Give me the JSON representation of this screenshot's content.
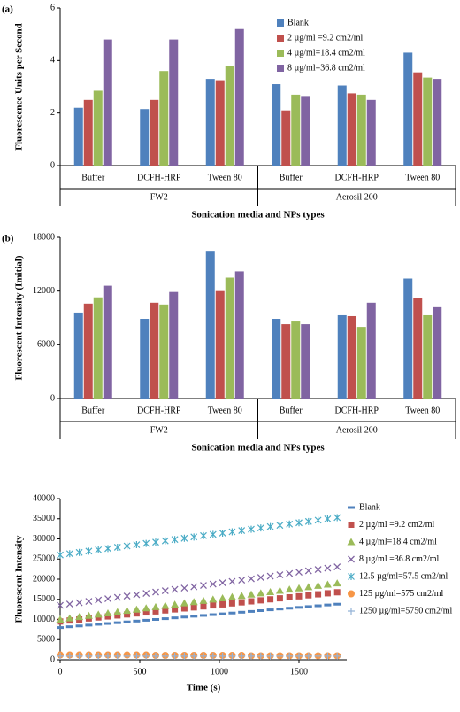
{
  "chart_data": [
    {
      "type": "bar",
      "panel_label": "(a)",
      "y_label": "Fluorescence Units per Second",
      "x_label": "Sonication media and NPs types",
      "categories": [
        "Buffer",
        "DCFH-HRP",
        "Tween 80",
        "Buffer",
        "DCFH-HRP",
        "Tween 80"
      ],
      "group_labels": [
        "FW2",
        "Aerosil 200"
      ],
      "series": [
        {
          "name": "Blank",
          "color": "#4f81bd",
          "values": [
            2.2,
            2.15,
            3.3,
            3.1,
            3.05,
            4.3
          ]
        },
        {
          "name": "2 µg/ml =9.2 cm2/ml",
          "color": "#c0504d",
          "values": [
            2.5,
            2.5,
            3.25,
            2.1,
            2.75,
            3.55
          ]
        },
        {
          "name": "4 µg/ml=18.4 cm2/ml",
          "color": "#9bbb59",
          "values": [
            2.85,
            3.6,
            3.8,
            2.7,
            2.7,
            3.35
          ]
        },
        {
          "name": "8 µg/ml=36.8 cm2/ml",
          "color": "#8064a2",
          "values": [
            4.8,
            4.8,
            5.2,
            2.65,
            2.5,
            3.3
          ]
        }
      ],
      "ylim": [
        0,
        6
      ],
      "yticks": [
        0,
        2,
        4,
        6
      ]
    },
    {
      "type": "bar",
      "panel_label": "(b)",
      "y_label": "Fluorescent Intensity (Imitial)",
      "x_label": "Sonication media and NPs types",
      "categories": [
        "Buffer",
        "DCFH-HRP",
        "Tween 80",
        "Buffer",
        "DCFH-HRP",
        "Tween 80"
      ],
      "group_labels": [
        "FW2",
        "Aerosil 200"
      ],
      "series": [
        {
          "color": "#4f81bd",
          "values": [
            9600,
            8900,
            16500,
            8900,
            9300,
            13400
          ]
        },
        {
          "color": "#c0504d",
          "values": [
            10600,
            10700,
            12000,
            8300,
            9200,
            11200
          ]
        },
        {
          "color": "#9bbb59",
          "values": [
            11300,
            10500,
            13500,
            8600,
            8000,
            9300
          ]
        },
        {
          "color": "#8064a2",
          "values": [
            12600,
            11900,
            14200,
            8300,
            10700,
            10200
          ]
        }
      ],
      "ylim": [
        0,
        18000
      ],
      "yticks": [
        0,
        6000,
        12000,
        18000
      ]
    },
    {
      "type": "scatter",
      "y_label": "Fluorescent Intensity",
      "x_label": "Time (s)",
      "x": [
        0,
        60,
        120,
        180,
        240,
        300,
        360,
        420,
        480,
        540,
        600,
        660,
        720,
        780,
        840,
        900,
        960,
        1020,
        1080,
        1140,
        1200,
        1260,
        1320,
        1380,
        1440,
        1500,
        1560,
        1620,
        1680,
        1740
      ],
      "series": [
        {
          "name": "Blank",
          "color": "#4f81bd",
          "marker": "dash",
          "values": [
            8000,
            8200,
            8400,
            8600,
            8800,
            9000,
            9200,
            9400,
            9600,
            9800,
            10000,
            10200,
            10400,
            10600,
            10800,
            11000,
            11200,
            11400,
            11600,
            11800,
            12000,
            12200,
            12400,
            12600,
            12800,
            13000,
            13200,
            13400,
            13600,
            13800
          ]
        },
        {
          "name": "2 µg/ml =9.2 cm2/ml",
          "color": "#c0504d",
          "marker": "square",
          "values": [
            9500,
            9750,
            10000,
            10250,
            10500,
            10750,
            11000,
            11250,
            11500,
            11750,
            12000,
            12250,
            12500,
            12750,
            13000,
            13250,
            13500,
            13750,
            14000,
            14250,
            14500,
            14750,
            15000,
            15250,
            15500,
            15750,
            16000,
            16250,
            16500,
            16750
          ]
        },
        {
          "name": "4 µg/ml=18.4 cm2/ml",
          "color": "#9bbb59",
          "marker": "triangle",
          "values": [
            10000,
            10310,
            10620,
            10930,
            11240,
            11550,
            11860,
            12170,
            12480,
            12790,
            13100,
            13410,
            13720,
            14030,
            14340,
            14650,
            14960,
            15270,
            15580,
            15890,
            16200,
            16510,
            16820,
            17130,
            17440,
            17750,
            18060,
            18370,
            18680,
            18990
          ]
        },
        {
          "name": "8 µg/ml =36.8 cm2/ml",
          "color": "#8064a2",
          "marker": "x",
          "values": [
            13500,
            13830,
            14160,
            14490,
            14820,
            15150,
            15480,
            15810,
            16140,
            16470,
            16800,
            17130,
            17460,
            17790,
            18120,
            18450,
            18780,
            19110,
            19440,
            19770,
            20100,
            20430,
            20760,
            21090,
            21420,
            21750,
            22080,
            22410,
            22740,
            23070
          ]
        },
        {
          "name": "12.5 µg/ml=57.5 cm2/ml",
          "color": "#4bacc6",
          "marker": "star",
          "values": [
            26000,
            26320,
            26640,
            26960,
            27280,
            27600,
            27920,
            28240,
            28560,
            28880,
            29200,
            29520,
            29840,
            30160,
            30480,
            30800,
            31120,
            31440,
            31760,
            32080,
            32400,
            32720,
            33040,
            33360,
            33680,
            34000,
            34320,
            34640,
            34960,
            35280
          ]
        },
        {
          "name": "125 µg/ml=575 cm2/ml",
          "color": "#f79646",
          "marker": "circle",
          "values": [
            1200,
            1200,
            1200,
            1200,
            1200,
            1200,
            1200,
            1200,
            1200,
            1200,
            1100,
            1100,
            1100,
            1100,
            1100,
            1100,
            1100,
            1100,
            1100,
            1100,
            1000,
            1000,
            1000,
            1000,
            1000,
            1000,
            1000,
            1000,
            1000,
            1000
          ]
        },
        {
          "name": "1250 µg/ml=5750 cm2/ml",
          "color": "#95b3d7",
          "marker": "plus",
          "values": [
            900,
            900,
            900,
            900,
            900,
            900,
            900,
            900,
            900,
            900,
            900,
            900,
            900,
            900,
            900,
            900,
            900,
            900,
            900,
            900,
            900,
            900,
            900,
            900,
            900,
            900,
            900,
            900,
            900,
            900
          ]
        }
      ],
      "xlim": [
        0,
        1800
      ],
      "xticks": [
        0,
        500,
        1000,
        1500
      ],
      "ylim": [
        0,
        40000
      ],
      "yticks": [
        0,
        5000,
        10000,
        15000,
        20000,
        25000,
        30000,
        35000,
        40000
      ]
    }
  ]
}
